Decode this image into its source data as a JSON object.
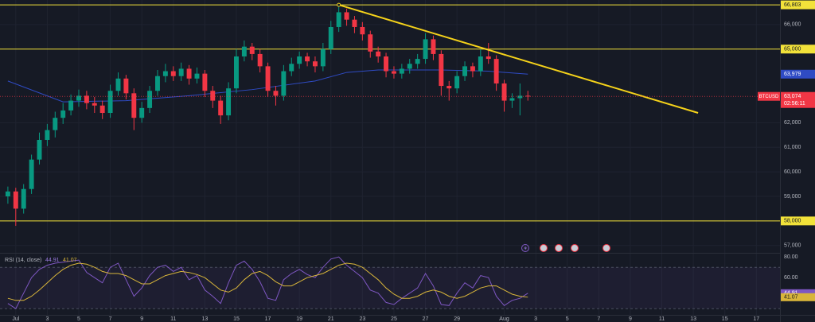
{
  "chart_data": [
    {
      "type": "candlestick",
      "symbol": "BTCUSD",
      "x": [
        0.5,
        1,
        1.5,
        2,
        2.5,
        3,
        3.5,
        4,
        4.5,
        5,
        5.5,
        6,
        6.5,
        7,
        7.5,
        8,
        8.5,
        9,
        9.5,
        10,
        10.5,
        11,
        11.5,
        12,
        12.5,
        13,
        13.5,
        14,
        14.5,
        15,
        15.5,
        16,
        16.5,
        17,
        17.5,
        18,
        18.5,
        19,
        19.5,
        20,
        20.5,
        21,
        21.5,
        22,
        22.5,
        23,
        23.5,
        24,
        24.5,
        25,
        25.5,
        26,
        26.5,
        27,
        27.5,
        28,
        28.5,
        29,
        29.5,
        30,
        30.5,
        31,
        31.5,
        32,
        32.5,
        33,
        33.5
      ],
      "open": [
        59000,
        59200,
        58500,
        59300,
        60500,
        61300,
        61700,
        62200,
        62500,
        62900,
        63100,
        62800,
        62700,
        62400,
        63300,
        63800,
        63200,
        62200,
        62600,
        63300,
        63900,
        64100,
        63900,
        64200,
        63800,
        64000,
        63300,
        62900,
        62300,
        63400,
        64700,
        65100,
        64800,
        64300,
        63300,
        63100,
        64100,
        64400,
        64700,
        64500,
        64300,
        65000,
        65900,
        66500,
        66200,
        65900,
        65600,
        64900,
        64700,
        64100,
        64000,
        64200,
        64400,
        64600,
        65400,
        64800,
        63500,
        63400,
        63900,
        64300,
        64100,
        64700,
        64600,
        63600,
        62900,
        63000,
        63100
      ],
      "high": [
        59400,
        59350,
        59500,
        60700,
        61600,
        61950,
        62450,
        62800,
        63150,
        63350,
        63300,
        63050,
        62900,
        63550,
        64050,
        63950,
        63400,
        62850,
        63500,
        64150,
        64400,
        64300,
        64450,
        64350,
        64250,
        64150,
        63500,
        63100,
        63650,
        65000,
        65350,
        65250,
        65000,
        64450,
        63500,
        64350,
        64650,
        64900,
        64850,
        64700,
        65250,
        66150,
        66803,
        66650,
        66350,
        66100,
        65750,
        65100,
        64850,
        64300,
        64400,
        64600,
        64800,
        65650,
        65550,
        64950,
        63700,
        64100,
        64500,
        64450,
        65000,
        65250,
        64750,
        63750,
        63200,
        63600,
        63300
      ],
      "low": [
        58700,
        57800,
        58300,
        59100,
        60300,
        61050,
        61400,
        61950,
        62300,
        62650,
        62550,
        62400,
        62150,
        62200,
        63100,
        62950,
        61700,
        62000,
        62400,
        63100,
        63650,
        63700,
        63700,
        63550,
        63600,
        63050,
        62600,
        61950,
        62100,
        63200,
        64500,
        64550,
        64050,
        63050,
        62700,
        62900,
        63900,
        64200,
        64300,
        64050,
        64100,
        64800,
        65700,
        65950,
        65650,
        65350,
        64650,
        64450,
        63850,
        63800,
        63800,
        64000,
        64200,
        64400,
        64550,
        63100,
        62900,
        63200,
        63700,
        63850,
        63900,
        64400,
        63300,
        62450,
        62600,
        62300,
        62900
      ],
      "close": [
        59200,
        58500,
        59300,
        60500,
        61300,
        61700,
        62200,
        62500,
        62900,
        63100,
        62800,
        62700,
        62400,
        63300,
        63800,
        63200,
        62200,
        62600,
        63300,
        63900,
        64100,
        63900,
        64200,
        63800,
        64000,
        63300,
        62900,
        62300,
        63400,
        64700,
        65100,
        64800,
        64300,
        63300,
        63100,
        64100,
        64400,
        64700,
        64500,
        64300,
        65000,
        65900,
        66500,
        66200,
        65900,
        65600,
        64900,
        64700,
        64100,
        64000,
        64200,
        64400,
        64600,
        65400,
        64800,
        63500,
        63400,
        63900,
        64300,
        64100,
        64700,
        64600,
        63600,
        62900,
        63000,
        63100,
        63074
      ],
      "up_color": "#089981",
      "down_color": "#f23645",
      "price_tag": {
        "label": "63,074",
        "countdown": "02:56:11",
        "color": "#f23645"
      },
      "ma": {
        "color": "#2f4bc4",
        "x": [
          0.5,
          4,
          8,
          12,
          16,
          20,
          22,
          24,
          28,
          31,
          33.5
        ],
        "values": [
          63700,
          62850,
          62900,
          63100,
          63350,
          63700,
          64050,
          64150,
          64150,
          64100,
          63979
        ],
        "value_labels": [
          null,
          null,
          null,
          null,
          null,
          null,
          null,
          null,
          null,
          null,
          "63,979"
        ]
      },
      "hlines": [
        {
          "value": 66803,
          "label": "66,803"
        },
        {
          "value": 65000,
          "label": "65,000"
        },
        {
          "value": 58000,
          "label": "58,000"
        }
      ],
      "hline_color": "#f2e23a",
      "trendline": {
        "x": [
          21.5,
          44.3
        ],
        "y": [
          66803,
          62400
        ],
        "color": "#f5d21a"
      },
      "xlim": [
        0,
        49.5
      ],
      "xticks": [
        {
          "value": 1,
          "label": "Jul"
        },
        3,
        5,
        7,
        9,
        11,
        13,
        15,
        17,
        19,
        21,
        23,
        25,
        27,
        29,
        {
          "value": 32,
          "label": "Aug"
        },
        {
          "value": 34,
          "label": "3"
        },
        {
          "value": 36,
          "label": "5"
        },
        {
          "value": 38,
          "label": "7"
        },
        {
          "value": 40,
          "label": "9"
        },
        {
          "value": 42,
          "label": "11"
        },
        {
          "value": 44,
          "label": "13"
        },
        {
          "value": 46,
          "label": "15"
        },
        {
          "value": 48,
          "label": "17"
        }
      ],
      "ylim": [
        56700,
        67000
      ],
      "yticks": [
        {
          "value": 57000,
          "label": "57,000"
        },
        {
          "value": 59000,
          "label": "59,000"
        },
        {
          "value": 60000,
          "label": "60,000"
        },
        {
          "value": 61000,
          "label": "61,000"
        },
        {
          "value": 62000,
          "label": "62,000"
        },
        {
          "value": 66000,
          "label": "66,000"
        }
      ],
      "grid": true
    },
    {
      "type": "line",
      "title": "RSI (14, close)",
      "x": [
        0.5,
        1,
        1.5,
        2,
        2.5,
        3,
        3.5,
        4,
        4.5,
        5,
        5.5,
        6,
        6.5,
        7,
        7.5,
        8,
        8.5,
        9,
        9.5,
        10,
        10.5,
        11,
        11.5,
        12,
        12.5,
        13,
        13.5,
        14,
        14.5,
        15,
        15.5,
        16,
        16.5,
        17,
        17.5,
        18,
        18.5,
        19,
        19.5,
        20,
        20.5,
        21,
        21.5,
        22,
        22.5,
        23,
        23.5,
        24,
        24.5,
        25,
        25.5,
        26,
        26.5,
        27,
        27.5,
        28,
        28.5,
        29,
        29.5,
        30,
        30.5,
        31,
        31.5,
        32,
        32.5,
        33,
        33.5
      ],
      "series": [
        {
          "color": "#7e57c2",
          "values": [
            35,
            30,
            45,
            60,
            68,
            72,
            74,
            75,
            76,
            77,
            65,
            60,
            55,
            70,
            74,
            58,
            42,
            50,
            62,
            70,
            72,
            66,
            70,
            58,
            62,
            48,
            42,
            35,
            55,
            72,
            76,
            68,
            56,
            40,
            38,
            58,
            64,
            68,
            63,
            60,
            70,
            78,
            80,
            72,
            66,
            60,
            48,
            45,
            36,
            34,
            40,
            45,
            50,
            64,
            52,
            34,
            33,
            45,
            55,
            50,
            62,
            60,
            42,
            33,
            38,
            40,
            44.91
          ]
        },
        {
          "color": "#d8b53a",
          "values": [
            40,
            38,
            38,
            42,
            48,
            55,
            62,
            68,
            72,
            74,
            73,
            70,
            66,
            64,
            64,
            62,
            58,
            54,
            54,
            58,
            62,
            64,
            66,
            65,
            63,
            60,
            54,
            48,
            46,
            50,
            58,
            64,
            66,
            62,
            56,
            52,
            52,
            56,
            60,
            62,
            64,
            68,
            72,
            74,
            73,
            70,
            64,
            58,
            50,
            44,
            40,
            40,
            42,
            46,
            48,
            46,
            42,
            40,
            42,
            46,
            50,
            52,
            52,
            48,
            44,
            42,
            41.07
          ]
        }
      ],
      "band": [
        30,
        70
      ],
      "ylim": [
        24,
        84
      ],
      "yticks": [
        {
          "value": 80,
          "label": "80.00"
        },
        {
          "value": 60,
          "label": "60.00"
        }
      ]
    }
  ]
}
